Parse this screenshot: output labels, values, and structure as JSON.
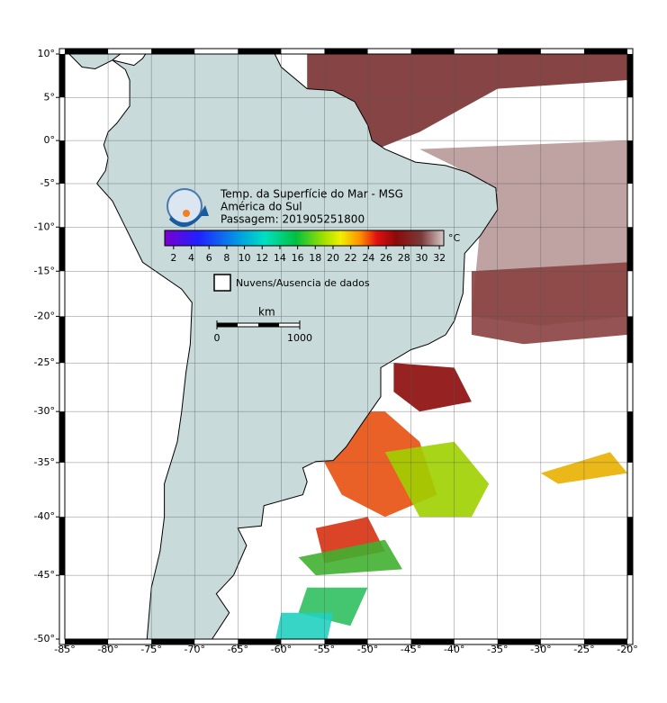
{
  "map": {
    "title": "Temp. da Superfície do Mar - MSG",
    "subtitle": "América do Sul",
    "pass": "Passagem: 201905251800",
    "xlim": [
      -85,
      -20
    ],
    "ylim": [
      -50,
      10
    ],
    "xticks": [
      {
        "value": -85,
        "label": "-85°"
      },
      {
        "value": -80,
        "label": "-80°"
      },
      {
        "value": -75,
        "label": "-75°"
      },
      {
        "value": -70,
        "label": "-70°"
      },
      {
        "value": -65,
        "label": "-65°"
      },
      {
        "value": -60,
        "label": "-60°"
      },
      {
        "value": -55,
        "label": "-55°"
      },
      {
        "value": -50,
        "label": "-50°"
      },
      {
        "value": -45,
        "label": "-45°"
      },
      {
        "value": -40,
        "label": "-40°"
      },
      {
        "value": -35,
        "label": "-35°"
      },
      {
        "value": -30,
        "label": "-30°"
      },
      {
        "value": -25,
        "label": "-25°"
      },
      {
        "value": -20,
        "label": "-20°"
      }
    ],
    "yticks": [
      {
        "value": 10,
        "label": "10°"
      },
      {
        "value": 5,
        "label": "5°"
      },
      {
        "value": 0,
        "label": "0°"
      },
      {
        "value": -5,
        "label": "-5°"
      },
      {
        "value": -10,
        "label": "-10°"
      },
      {
        "value": -15,
        "label": "-15°"
      },
      {
        "value": -20,
        "label": "-20°"
      },
      {
        "value": -25,
        "label": "-25°"
      },
      {
        "value": -30,
        "label": "-30°"
      },
      {
        "value": -35,
        "label": "-35°"
      },
      {
        "value": -40,
        "label": "-40°"
      },
      {
        "value": -45,
        "label": "-45°"
      },
      {
        "value": -50,
        "label": "-50°"
      }
    ],
    "colorbar": {
      "range": [
        1,
        32.5
      ],
      "ticks": [
        2,
        4,
        6,
        8,
        10,
        12,
        14,
        16,
        18,
        20,
        22,
        24,
        26,
        28,
        30,
        32
      ],
      "unit": "°C"
    },
    "legend": "Nuvens/Ausencia de dados",
    "scale": {
      "label": "km",
      "ticks": [
        0,
        1000
      ]
    }
  }
}
